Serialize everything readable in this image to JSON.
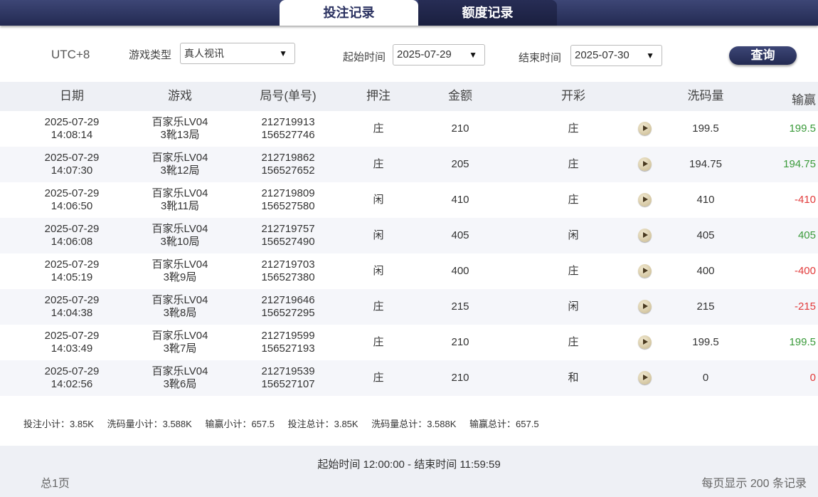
{
  "tabs": [
    {
      "label": "投注记录",
      "active": true
    },
    {
      "label": "额度记录",
      "active": false
    }
  ],
  "filters": {
    "timezone": "UTC+8",
    "game_type_label": "游戏类型",
    "game_type_value": "真人视讯",
    "start_label": "起始时间",
    "start_value": "2025-07-29",
    "end_label": "结束时间",
    "end_value": "2025-07-30",
    "query_button": "查询"
  },
  "columns": [
    "日期",
    "游戏",
    "局号(单号)",
    "押注",
    "金额",
    "开彩",
    "洗码量",
    "输赢"
  ],
  "rows": [
    {
      "date": "2025-07-29",
      "time": "14:08:14",
      "game": "百家乐LV04",
      "shoe": "3靴13局",
      "round": "212719913",
      "order": "156527746",
      "bet": "庄",
      "amount": "210",
      "result": "庄",
      "wash": "199.5",
      "win": "199.5",
      "win_color": "green"
    },
    {
      "date": "2025-07-29",
      "time": "14:07:30",
      "game": "百家乐LV04",
      "shoe": "3靴12局",
      "round": "212719862",
      "order": "156527652",
      "bet": "庄",
      "amount": "205",
      "result": "庄",
      "wash": "194.75",
      "win": "194.75",
      "win_color": "green"
    },
    {
      "date": "2025-07-29",
      "time": "14:06:50",
      "game": "百家乐LV04",
      "shoe": "3靴11局",
      "round": "212719809",
      "order": "156527580",
      "bet": "闲",
      "amount": "410",
      "result": "庄",
      "wash": "410",
      "win": "-410",
      "win_color": "red"
    },
    {
      "date": "2025-07-29",
      "time": "14:06:08",
      "game": "百家乐LV04",
      "shoe": "3靴10局",
      "round": "212719757",
      "order": "156527490",
      "bet": "闲",
      "amount": "405",
      "result": "闲",
      "wash": "405",
      "win": "405",
      "win_color": "green"
    },
    {
      "date": "2025-07-29",
      "time": "14:05:19",
      "game": "百家乐LV04",
      "shoe": "3靴9局",
      "round": "212719703",
      "order": "156527380",
      "bet": "闲",
      "amount": "400",
      "result": "庄",
      "wash": "400",
      "win": "-400",
      "win_color": "red"
    },
    {
      "date": "2025-07-29",
      "time": "14:04:38",
      "game": "百家乐LV04",
      "shoe": "3靴8局",
      "round": "212719646",
      "order": "156527295",
      "bet": "庄",
      "amount": "215",
      "result": "闲",
      "wash": "215",
      "win": "-215",
      "win_color": "red"
    },
    {
      "date": "2025-07-29",
      "time": "14:03:49",
      "game": "百家乐LV04",
      "shoe": "3靴7局",
      "round": "212719599",
      "order": "156527193",
      "bet": "庄",
      "amount": "210",
      "result": "庄",
      "wash": "199.5",
      "win": "199.5",
      "win_color": "green"
    },
    {
      "date": "2025-07-29",
      "time": "14:02:56",
      "game": "百家乐LV04",
      "shoe": "3靴6局",
      "round": "212719539",
      "order": "156527107",
      "bet": "庄",
      "amount": "210",
      "result": "和",
      "wash": "0",
      "win": "0",
      "win_color": "red"
    }
  ],
  "summary": [
    "投注小计：3.85K",
    "洗码量小计：3.588K",
    "输赢小计：657.5",
    "投注总计：3.85K",
    "洗码量总计：3.588K",
    "输赢总计：657.5"
  ],
  "footer": {
    "time_range": "起始时间 12:00:00 - 结束时间 11:59:59",
    "pages": "总1页",
    "per_page": "每页显示 200 条记录"
  },
  "colors": {
    "green": "#3a9a3a",
    "red": "#e23b3b",
    "header": "#2a3160"
  },
  "icons": {
    "replay": "play-icon",
    "dropdown": "triangle-down-icon"
  }
}
